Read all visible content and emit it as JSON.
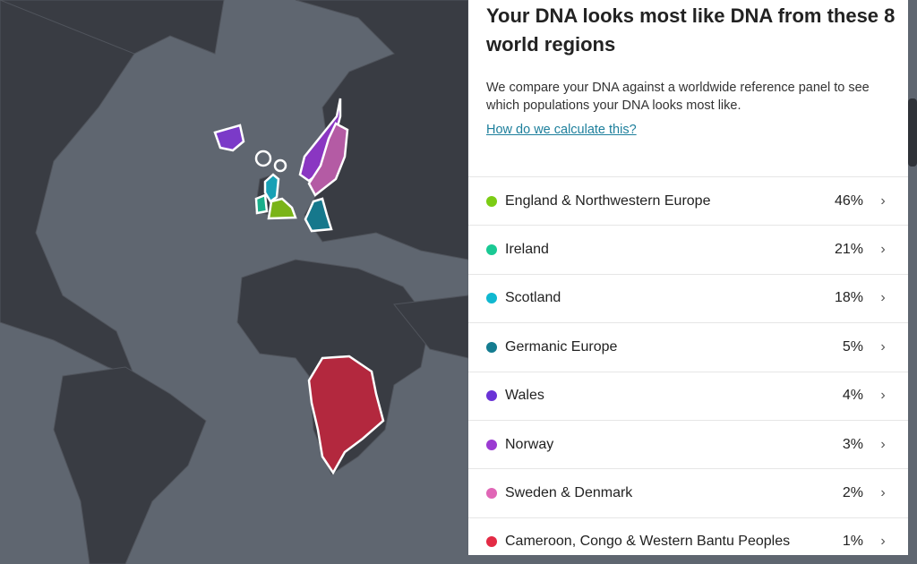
{
  "panel": {
    "title": "Your DNA looks most like DNA from these 8 world regions",
    "description": "We compare your DNA against a worldwide reference panel to see which populations your DNA looks most like.",
    "link": "How do we calculate this?",
    "regions": [
      {
        "name": "England & Northwestern Europe",
        "percent": "46%",
        "color": "#7ccc14"
      },
      {
        "name": "Ireland",
        "percent": "21%",
        "color": "#1ac994"
      },
      {
        "name": "Scotland",
        "percent": "18%",
        "color": "#10b8d0"
      },
      {
        "name": "Germanic Europe",
        "percent": "5%",
        "color": "#147c90"
      },
      {
        "name": "Wales",
        "percent": "4%",
        "color": "#6a33d6"
      },
      {
        "name": "Norway",
        "percent": "3%",
        "color": "#9b3bd2"
      },
      {
        "name": "Sweden & Denmark",
        "percent": "2%",
        "color": "#e066b6"
      },
      {
        "name": "Cameroon, Congo & Western Bantu Peoples",
        "percent": "1%",
        "color": "#e32b45"
      }
    ],
    "chevron": "chevron-right-icon"
  }
}
